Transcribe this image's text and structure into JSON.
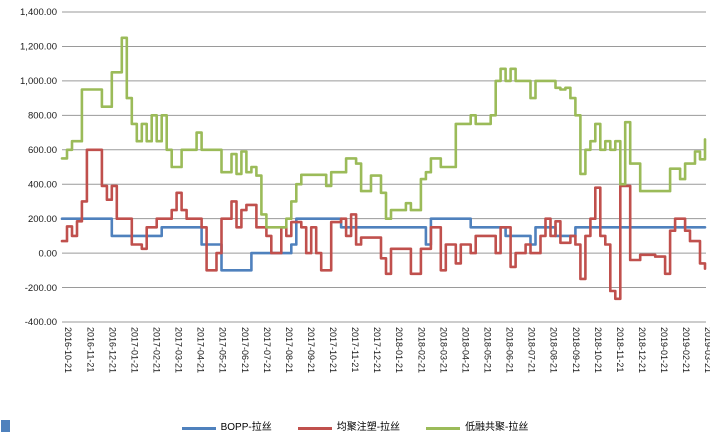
{
  "chart": {
    "y_axis_tick_labels": [
      "1,400.00",
      "1,200.00",
      "1,000.00",
      "800.00",
      "600.00",
      "400.00",
      "200.00",
      "0.00",
      "-200.00",
      "-400.00"
    ],
    "colors": {
      "bopp_blue": "#4F81BD",
      "junju_red": "#C0504D",
      "dirong_green": "#9BBB59",
      "gridline_gray": "#9a9a9a",
      "axis_text": "#1a1a1a"
    }
  },
  "chart_data": {
    "type": "line",
    "title": "",
    "xlabel": "",
    "ylabel": "",
    "ylim": [
      -400,
      1400
    ],
    "y_tick_step": 200,
    "grid": "horizontal",
    "legend_position": "bottom",
    "x_labels": [
      "2016-10-21",
      "2016-11-21",
      "2016-12-21",
      "2017-01-21",
      "2017-02-21",
      "2017-03-21",
      "2017-04-21",
      "2017-05-21",
      "2017-06-21",
      "2017-07-21",
      "2017-08-21",
      "2017-09-21",
      "2017-10-21",
      "2017-11-21",
      "2017-12-21",
      "2018-01-21",
      "2018-02-21",
      "2018-03-21",
      "2018-04-21",
      "2018-05-21",
      "2018-06-21",
      "2018-07-21",
      "2018-08-21",
      "2018-09-21",
      "2018-10-21",
      "2018-11-21",
      "2018-12-21",
      "2019-01-21",
      "2019-02-21",
      "2019-03-21"
    ],
    "sampling_note": "values estimated from chart at ~weekly resolution between the monthly x labels",
    "series": [
      {
        "name": "BOPP-拉丝",
        "color": "#4F81BD",
        "values": [
          200,
          200,
          200,
          200,
          200,
          200,
          200,
          200,
          200,
          200,
          100,
          100,
          100,
          100,
          100,
          100,
          100,
          100,
          100,
          100,
          150,
          150,
          150,
          150,
          150,
          150,
          150,
          150,
          50,
          50,
          50,
          50,
          -100,
          -100,
          -100,
          -100,
          -100,
          -100,
          0,
          0,
          0,
          0,
          0,
          0,
          0,
          0,
          50,
          200,
          200,
          200,
          200,
          200,
          200,
          200,
          200,
          200,
          150,
          150,
          150,
          150,
          150,
          150,
          150,
          150,
          150,
          150,
          150,
          150,
          150,
          150,
          150,
          150,
          150,
          50,
          200,
          200,
          200,
          200,
          200,
          200,
          200,
          200,
          150,
          150,
          150,
          150,
          150,
          150,
          150,
          100,
          100,
          100,
          100,
          100,
          50,
          150,
          150,
          150,
          150,
          100,
          100,
          100,
          100,
          150,
          150,
          150,
          150,
          150,
          150,
          150,
          150,
          150,
          150,
          150,
          150,
          150,
          150,
          150,
          150,
          150,
          150,
          150,
          150,
          150,
          150,
          150,
          150,
          150,
          150,
          150
        ]
      },
      {
        "name": "均聚注塑-拉丝",
        "color": "#C0504D",
        "values": [
          70,
          155,
          100,
          185,
          300,
          600,
          600,
          600,
          390,
          310,
          390,
          200,
          200,
          200,
          50,
          50,
          25,
          150,
          150,
          200,
          200,
          200,
          250,
          350,
          250,
          200,
          200,
          200,
          150,
          -100,
          -100,
          0,
          200,
          200,
          300,
          150,
          250,
          280,
          280,
          150,
          150,
          100,
          0,
          0,
          150,
          100,
          180,
          180,
          150,
          0,
          150,
          0,
          -100,
          -100,
          180,
          180,
          200,
          100,
          225,
          50,
          90,
          90,
          90,
          90,
          -30,
          -120,
          25,
          25,
          25,
          25,
          -120,
          -120,
          25,
          25,
          150,
          150,
          -100,
          50,
          50,
          -60,
          50,
          50,
          0,
          100,
          100,
          100,
          100,
          0,
          150,
          150,
          -80,
          0,
          0,
          50,
          0,
          0,
          100,
          200,
          100,
          185,
          60,
          60,
          100,
          50,
          -150,
          100,
          200,
          380,
          100,
          50,
          -220,
          -265,
          390,
          390,
          -40,
          -40,
          -10,
          -10,
          -10,
          -20,
          -20,
          -120,
          130,
          200,
          200,
          130,
          70,
          70,
          -60,
          -90
        ]
      },
      {
        "name": "低融共聚-拉丝",
        "color": "#9BBB59",
        "values": [
          550,
          600,
          650,
          650,
          950,
          950,
          950,
          950,
          850,
          850,
          1050,
          1050,
          1250,
          900,
          750,
          650,
          750,
          650,
          800,
          650,
          800,
          600,
          500,
          500,
          600,
          600,
          600,
          700,
          600,
          600,
          600,
          600,
          470,
          470,
          575,
          460,
          590,
          470,
          500,
          450,
          225,
          150,
          150,
          150,
          150,
          200,
          300,
          400,
          455,
          455,
          455,
          455,
          455,
          390,
          470,
          470,
          470,
          550,
          550,
          520,
          360,
          360,
          450,
          450,
          350,
          200,
          250,
          250,
          250,
          290,
          250,
          250,
          430,
          470,
          550,
          550,
          500,
          500,
          500,
          750,
          750,
          750,
          800,
          750,
          750,
          750,
          800,
          1000,
          1070,
          1000,
          1070,
          1000,
          1000,
          1000,
          900,
          1000,
          1000,
          1000,
          1000,
          960,
          950,
          960,
          900,
          800,
          460,
          600,
          650,
          750,
          600,
          650,
          600,
          650,
          400,
          760,
          520,
          520,
          360,
          360,
          360,
          360,
          360,
          360,
          490,
          490,
          430,
          520,
          520,
          590,
          545,
          660
        ]
      }
    ]
  }
}
